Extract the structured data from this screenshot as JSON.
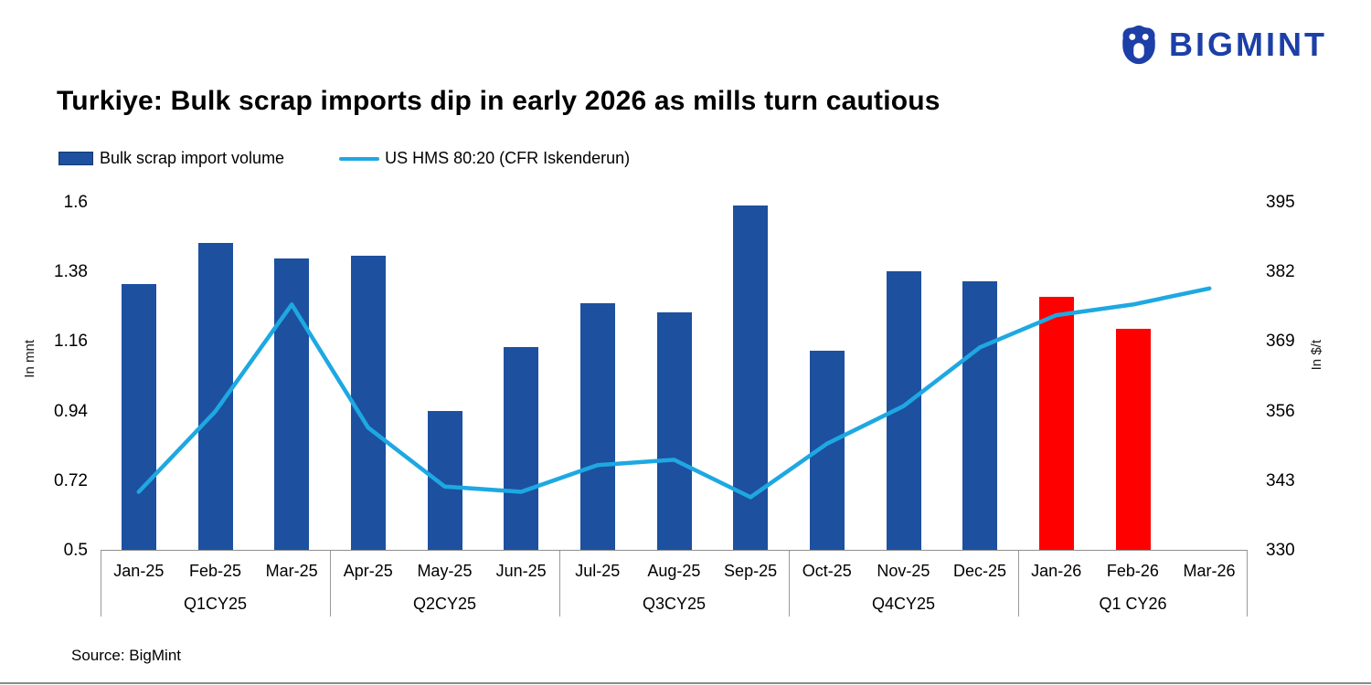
{
  "brand": {
    "name": "BIGMINT",
    "color": "#1c3fa8"
  },
  "title": "Turkiye: Bulk scrap imports dip in early 2026 as mills turn cautious",
  "legend": [
    {
      "label": "Bulk scrap import volume",
      "type": "bar"
    },
    {
      "label": "US HMS 80:20 (CFR Iskenderun)",
      "type": "line"
    }
  ],
  "source": "Source: BigMint",
  "chart_data": {
    "type": "bar",
    "subtype": "bar+line combo, dual axis",
    "categories": [
      "Jan-25",
      "Feb-25",
      "Mar-25",
      "Apr-25",
      "May-25",
      "Jun-25",
      "Jul-25",
      "Aug-25",
      "Sep-25",
      "Oct-25",
      "Nov-25",
      "Dec-25",
      "Jan-26",
      "Feb-26",
      "Mar-26"
    ],
    "quarter_groups": [
      {
        "label": "Q1CY25",
        "span": 3
      },
      {
        "label": "Q2CY25",
        "span": 3
      },
      {
        "label": "Q3CY25",
        "span": 3
      },
      {
        "label": "Q4CY25",
        "span": 3
      },
      {
        "label": "Q1 CY26",
        "span": 3
      }
    ],
    "series": [
      {
        "name": "Bulk scrap import volume",
        "type": "bar",
        "axis": "left",
        "values": [
          1.34,
          1.47,
          1.42,
          1.43,
          0.94,
          1.14,
          1.28,
          1.25,
          1.59,
          1.13,
          1.38,
          1.35,
          1.3,
          1.2,
          null
        ],
        "highlight_indices": [
          12,
          13
        ]
      },
      {
        "name": "US HMS 80:20 (CFR Iskenderun)",
        "type": "line",
        "axis": "right",
        "values": [
          341,
          356,
          376,
          353,
          342,
          341,
          346,
          347,
          340,
          350,
          357,
          368,
          374,
          376,
          379
        ]
      }
    ],
    "left_axis": {
      "label": "In mnt",
      "min": 0.5,
      "max": 1.6,
      "ticks": [
        1.6,
        1.38,
        1.16,
        0.94,
        0.72,
        0.5
      ]
    },
    "right_axis": {
      "label": "In $/t",
      "min": 330,
      "max": 395,
      "ticks": [
        395,
        382,
        369,
        356,
        343,
        330
      ]
    },
    "bar_color": "#1d509f",
    "bar_highlight_color": "#ff0000",
    "line_color": "#1ea8e2",
    "grid": false,
    "legend_position": "top-left"
  }
}
